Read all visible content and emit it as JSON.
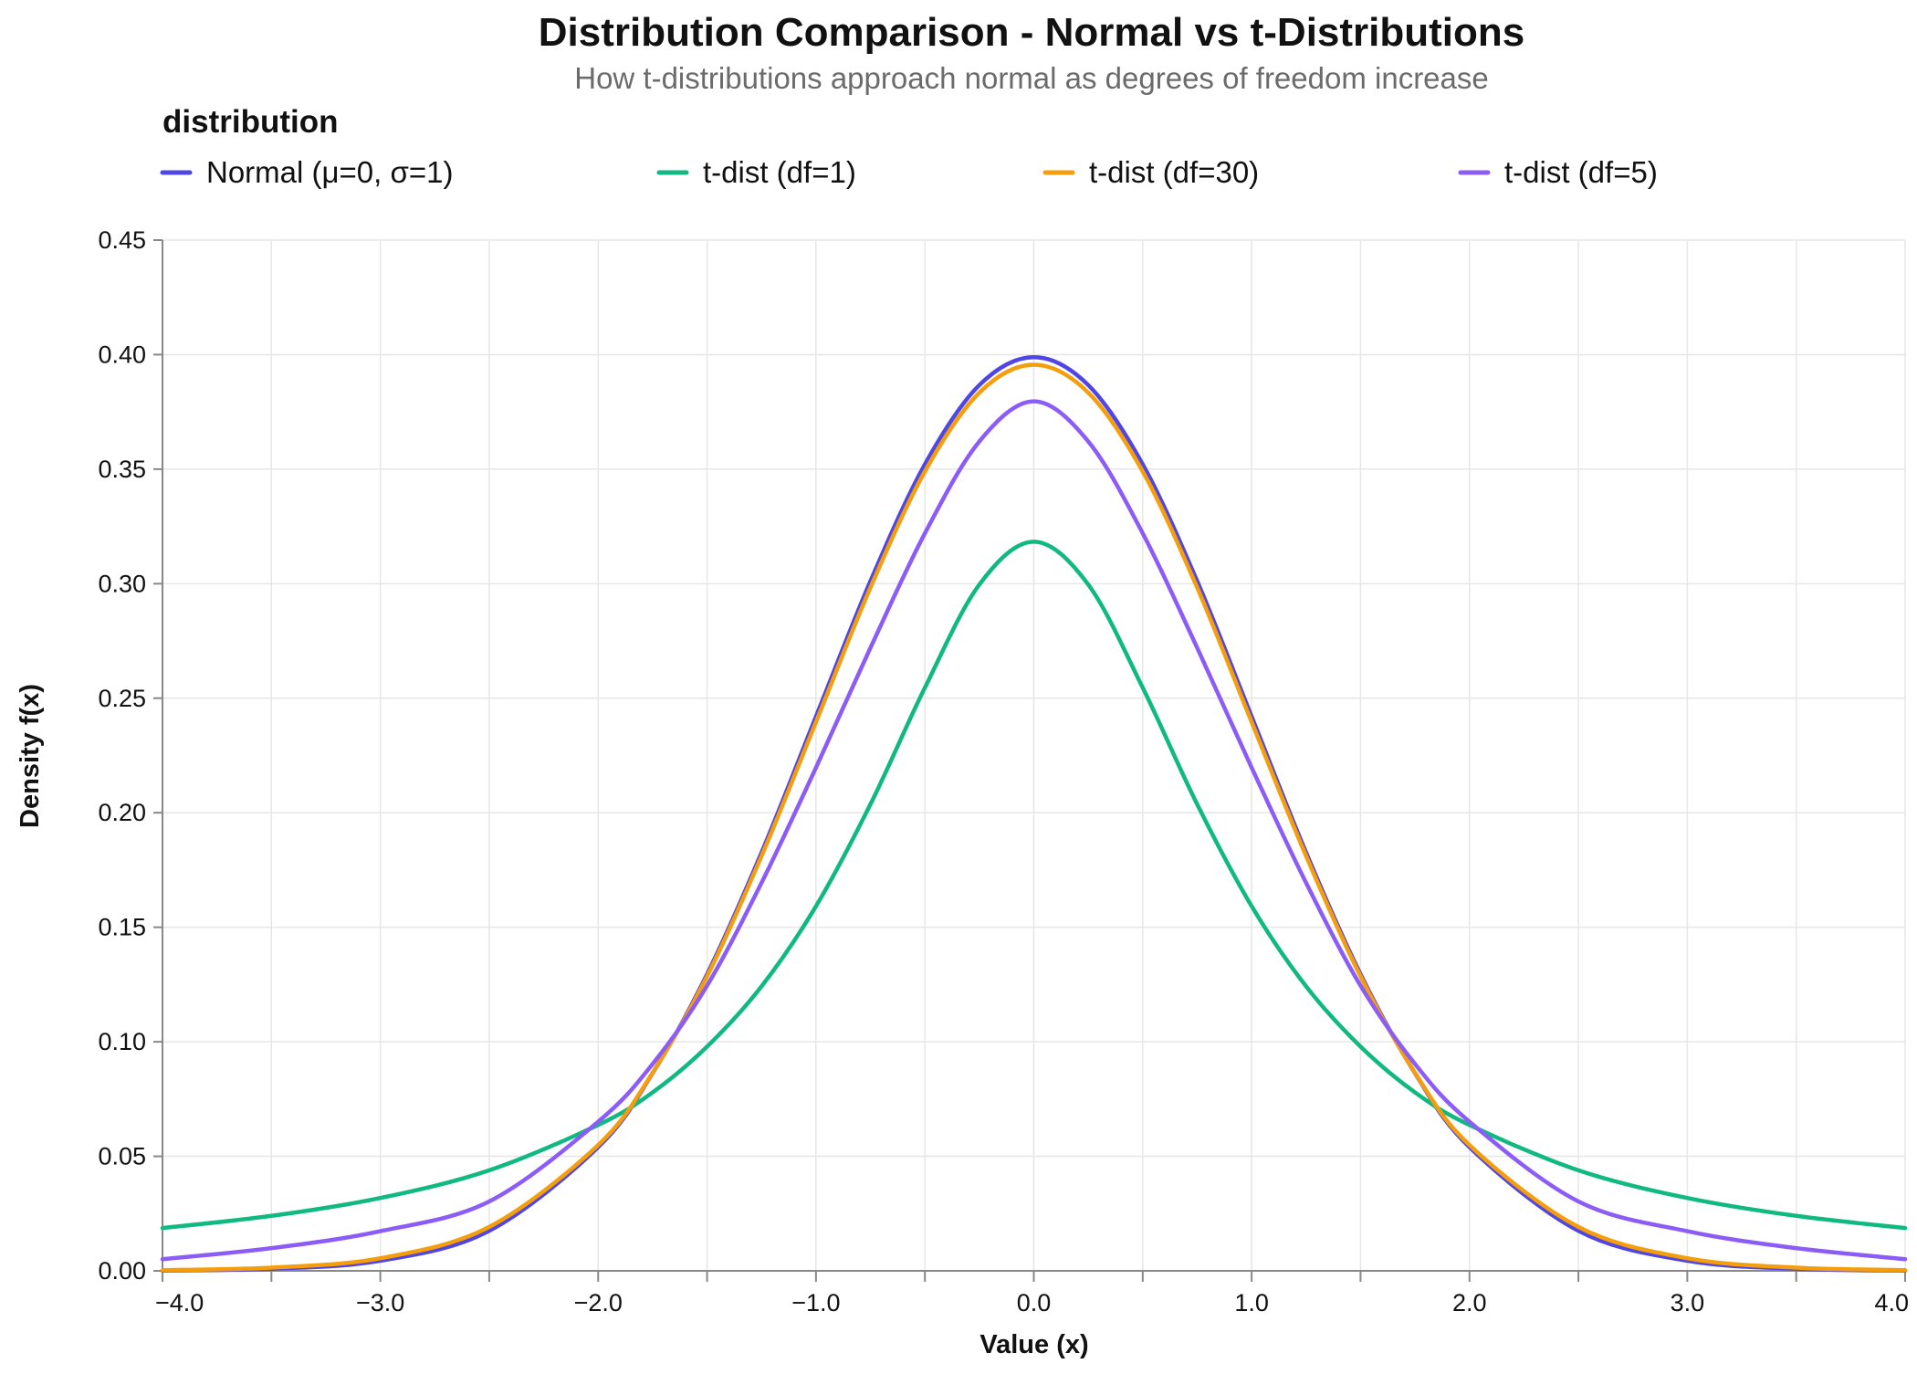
{
  "chart_data": {
    "type": "line",
    "title": "Distribution Comparison - Normal vs t-Distributions",
    "subtitle": "How t-distributions approach normal as degrees of freedom increase",
    "xlabel": "Value (x)",
    "ylabel": "Density f(x)",
    "xlim": [
      -4.0,
      4.0
    ],
    "ylim": [
      0,
      0.45
    ],
    "x_ticks": [
      "−4.0",
      "−3.0",
      "−2.0",
      "−1.0",
      "0.0",
      "1.0",
      "2.0",
      "3.0",
      "4.0"
    ],
    "x_tick_values": [
      -4,
      -3,
      -2,
      -1,
      0,
      1,
      2,
      3,
      4
    ],
    "x_minor_tick_values": [
      -3.5,
      -2.5,
      -1.5,
      -0.5,
      0.5,
      1.5,
      2.5,
      3.5
    ],
    "y_ticks": [
      "0.00",
      "0.05",
      "0.10",
      "0.15",
      "0.20",
      "0.25",
      "0.30",
      "0.35",
      "0.40",
      "0.45"
    ],
    "y_tick_values": [
      0,
      0.05,
      0.1,
      0.15,
      0.2,
      0.25,
      0.3,
      0.35,
      0.4,
      0.45
    ],
    "grid": true,
    "legend": {
      "title": "distribution",
      "placement": "top"
    },
    "x": [
      -4.0,
      -3.5,
      -3.0,
      -2.5,
      -2.0,
      -1.75,
      -1.5,
      -1.25,
      -1.0,
      -0.75,
      -0.5,
      -0.25,
      0.0,
      0.25,
      0.5,
      0.75,
      1.0,
      1.25,
      1.5,
      1.75,
      2.0,
      2.5,
      3.0,
      3.5,
      4.0
    ],
    "series": [
      {
        "name": "Normal (μ=0, σ=1)",
        "color": "#4f46e5",
        "values": [
          0.0001,
          0.0009,
          0.0044,
          0.0175,
          0.054,
          0.0863,
          0.1295,
          0.1826,
          0.242,
          0.3011,
          0.3521,
          0.3867,
          0.3989,
          0.3867,
          0.3521,
          0.3011,
          0.242,
          0.1826,
          0.1295,
          0.0863,
          0.054,
          0.0175,
          0.0044,
          0.0009,
          0.0001
        ]
      },
      {
        "name": "t-dist (df=1)",
        "color": "#10b981",
        "values": [
          0.0187,
          0.024,
          0.0318,
          0.0439,
          0.0637,
          0.0779,
          0.0979,
          0.1242,
          0.1592,
          0.2037,
          0.2546,
          0.2996,
          0.3183,
          0.2996,
          0.2546,
          0.2037,
          0.1592,
          0.1242,
          0.0979,
          0.0779,
          0.0637,
          0.0439,
          0.0318,
          0.024,
          0.0187
        ]
      },
      {
        "name": "t-dist (df=30)",
        "color": "#f59e0b",
        "values": [
          0.0003,
          0.0014,
          0.0055,
          0.0192,
          0.0549,
          0.0865,
          0.1286,
          0.1811,
          0.2396,
          0.2983,
          0.349,
          0.3834,
          0.3956,
          0.3834,
          0.349,
          0.2983,
          0.2396,
          0.1811,
          0.1286,
          0.0865,
          0.0549,
          0.0192,
          0.0055,
          0.0014,
          0.0003
        ]
      },
      {
        "name": "t-dist (df=5)",
        "color": "#8b5cf6",
        "values": [
          0.0051,
          0.0099,
          0.0173,
          0.0303,
          0.0651,
          0.0903,
          0.1245,
          0.1694,
          0.2197,
          0.272,
          0.322,
          0.3621,
          0.3796,
          0.3621,
          0.322,
          0.272,
          0.2197,
          0.1694,
          0.1245,
          0.0903,
          0.0651,
          0.0303,
          0.0173,
          0.0099,
          0.0051
        ]
      }
    ]
  }
}
